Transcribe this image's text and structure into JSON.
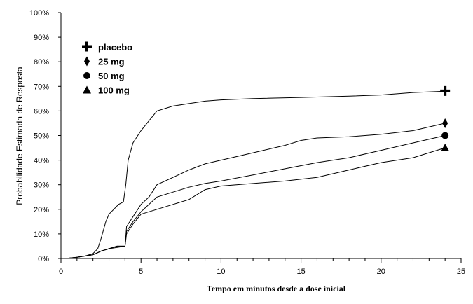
{
  "chart_data": {
    "type": "line",
    "title": "",
    "xlabel": "Tempo em minutos desde a dose inicial",
    "ylabel": "Probabilidade Estimada de Resposta",
    "xlim": [
      0,
      25
    ],
    "ylim": [
      0,
      100
    ],
    "x_ticks": [
      "0",
      "5",
      "10",
      "15",
      "20",
      "25"
    ],
    "y_ticks": [
      "0%",
      "10%",
      "20%",
      "30%",
      "40%",
      "50%",
      "60%",
      "70%",
      "80%",
      "90%",
      "100%"
    ],
    "grid": false,
    "legend_position": "top-left",
    "series": [
      {
        "name": "placebo",
        "marker": "plus",
        "color": "#000000",
        "x": [
          0.3,
          1,
          1.5,
          2,
          2.3,
          2.5,
          2.8,
          3,
          3.3,
          3.6,
          3.9,
          4.05,
          4.2,
          4.5,
          5,
          5.5,
          6,
          7,
          8,
          9,
          10,
          12,
          15,
          18,
          20,
          22,
          24
        ],
        "y": [
          0,
          0.5,
          1,
          2,
          4,
          8,
          15,
          18,
          20,
          22,
          23,
          30,
          40,
          47,
          52,
          56,
          60,
          62,
          63,
          64,
          64.5,
          65,
          65.5,
          66,
          66.5,
          67.5,
          68
        ]
      },
      {
        "name": "25 mg",
        "marker": "diamond",
        "color": "#000000",
        "x": [
          0.3,
          1,
          2,
          2.5,
          3,
          3.5,
          4,
          4.1,
          4.5,
          5,
          5.5,
          6,
          7,
          8,
          9,
          10,
          12,
          14,
          15,
          16,
          18,
          20,
          22,
          24
        ],
        "y": [
          0,
          0.5,
          1.5,
          3,
          4,
          5,
          5,
          13,
          17,
          22,
          25,
          30,
          33,
          36,
          38.5,
          40,
          43,
          46,
          48,
          49,
          49.5,
          50.5,
          52,
          55
        ]
      },
      {
        "name": "50 mg",
        "marker": "circle",
        "color": "#000000",
        "x": [
          0.3,
          1,
          2,
          2.5,
          3,
          3.5,
          4,
          4.1,
          4.5,
          5,
          5.5,
          6,
          7,
          8,
          9,
          10,
          12,
          14,
          16,
          18,
          20,
          22,
          24
        ],
        "y": [
          0,
          0.5,
          1.5,
          3,
          4,
          5,
          5,
          11,
          15,
          19,
          22,
          25,
          27,
          29,
          30.5,
          31.5,
          34,
          36.5,
          39,
          41,
          44,
          47,
          50
        ]
      },
      {
        "name": "100 mg",
        "marker": "triangle",
        "color": "#000000",
        "x": [
          0.3,
          1,
          2,
          2.5,
          3,
          3.5,
          4,
          4.1,
          4.5,
          5,
          6,
          7,
          8,
          9,
          10,
          12,
          14,
          16,
          18,
          20,
          22,
          24
        ],
        "y": [
          0,
          0.5,
          1.5,
          3,
          4,
          4.5,
          5,
          10,
          14,
          18,
          20,
          22,
          24,
          28,
          29.5,
          30.5,
          31.5,
          33,
          36,
          39,
          41,
          45
        ]
      }
    ]
  }
}
